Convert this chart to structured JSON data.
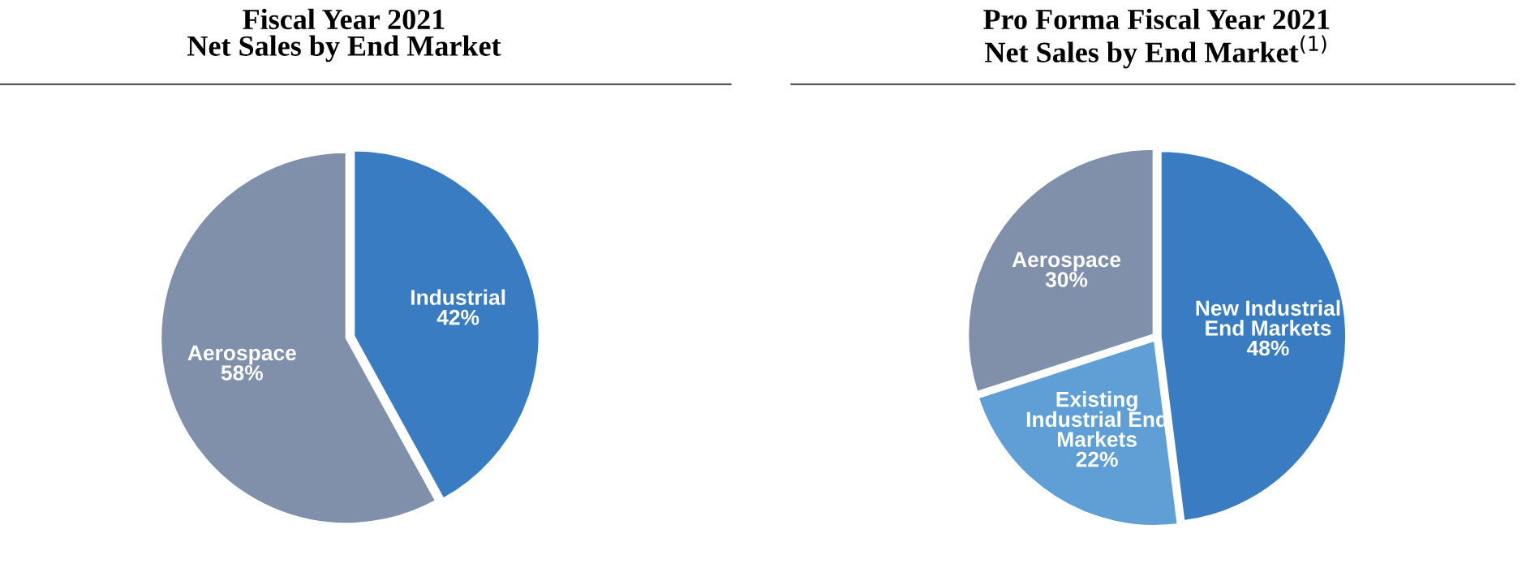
{
  "chart_data": [
    {
      "type": "pie",
      "title": "Fiscal Year 2021\nNet Sales by End Market",
      "categories": [
        "Industrial",
        "Aerospace"
      ],
      "values": [
        42,
        58
      ],
      "value_labels": [
        "42%",
        "58%"
      ],
      "colors": [
        "#3a7cc2",
        "#8090aa"
      ]
    },
    {
      "type": "pie",
      "title": "Pro Forma Fiscal Year 2021\nNet Sales by End Market$^{(1)}$",
      "categories": [
        "New Industrial\nEnd Markets",
        "Existing\nIndustrial End\nMarkets",
        "Aerospace"
      ],
      "values": [
        48,
        22,
        30
      ],
      "value_labels": [
        "48%",
        "22%",
        "30%"
      ],
      "colors": [
        "#3a7cc2",
        "#5f9fd6",
        "#8090aa"
      ]
    }
  ]
}
